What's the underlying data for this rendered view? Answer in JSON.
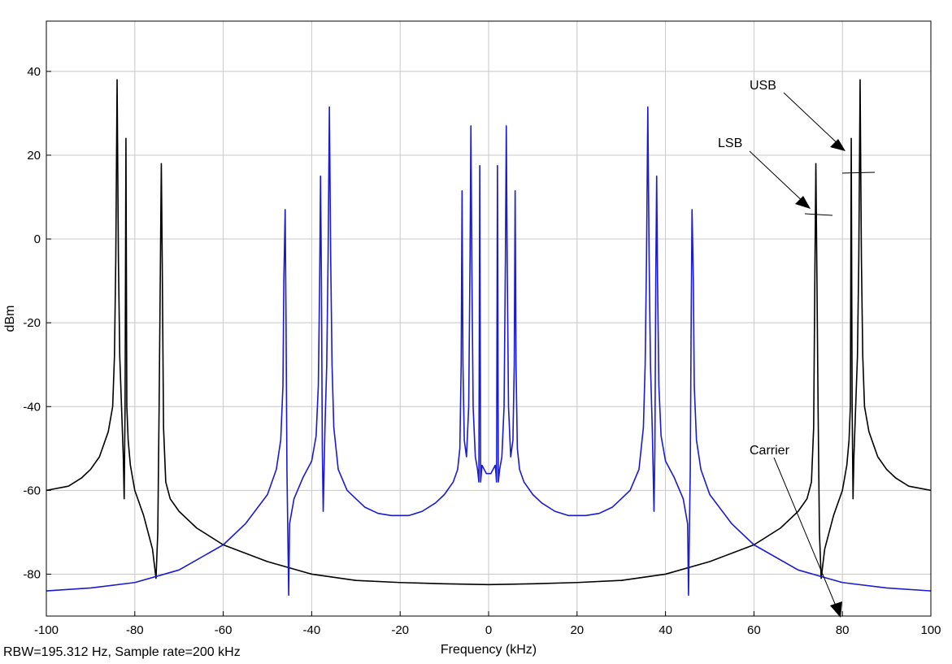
{
  "chart_data": {
    "type": "line",
    "title": "",
    "xlabel": "Frequency (kHz)",
    "ylabel": "dBm",
    "xlim": [
      -100,
      100
    ],
    "ylim": [
      -90,
      52
    ],
    "xticks": [
      -100,
      -80,
      -60,
      -40,
      -20,
      0,
      20,
      40,
      60,
      80,
      100
    ],
    "yticks": [
      -80,
      -60,
      -40,
      -20,
      0,
      20,
      40
    ],
    "grid": true,
    "legend": "none",
    "series": [
      {
        "color": "#000000",
        "x": [
          -100,
          -95,
          -92,
          -90,
          -88,
          -86,
          -85,
          -84.6,
          -84.3,
          -84,
          -83.7,
          -83.4,
          -83,
          -82.6,
          -82.4,
          -82.2,
          -82,
          -81.8,
          -81.5,
          -81,
          -80,
          -78,
          -76,
          -75.2,
          -74.8,
          -74.5,
          -74.2,
          -74,
          -73.8,
          -73.5,
          -73,
          -72,
          -70,
          -66,
          -60,
          -50,
          -40,
          -30,
          -20,
          -10,
          0,
          10,
          20,
          30,
          40,
          50,
          60,
          66,
          70,
          72,
          73,
          73.5,
          73.8,
          74,
          74.2,
          74.5,
          74.8,
          75.2,
          76,
          78,
          80,
          81,
          81.5,
          81.8,
          82,
          82.2,
          82.4,
          82.6,
          83,
          83.4,
          83.7,
          84,
          84.3,
          84.6,
          85,
          86,
          88,
          90,
          92,
          95,
          100
        ],
        "y": [
          -60,
          -59,
          -57,
          -55,
          -52,
          -46,
          -40,
          -28,
          -5,
          38,
          -5,
          -28,
          -40,
          -52,
          -62,
          -40,
          24,
          -40,
          -48,
          -54,
          -60,
          -66,
          -74,
          -81,
          -70,
          -40,
          -5,
          18,
          -5,
          -45,
          -58,
          -62,
          -65,
          -69,
          -73,
          -77,
          -80,
          -81.5,
          -82,
          -82.3,
          -82.5,
          -82.3,
          -82,
          -81.5,
          -80,
          -77,
          -73,
          -69,
          -65,
          -62,
          -58,
          -45,
          -5,
          18,
          -5,
          -40,
          -70,
          -81,
          -74,
          -66,
          -60,
          -54,
          -48,
          -40,
          24,
          -40,
          -62,
          -52,
          -40,
          -28,
          -5,
          38,
          -5,
          -28,
          -40,
          -46,
          -52,
          -55,
          -57,
          -59,
          -60
        ]
      },
      {
        "color": "#1a1ad0",
        "x": [
          -100,
          -90,
          -80,
          -70,
          -60,
          -55,
          -50,
          -48,
          -47,
          -46.5,
          -46.3,
          -46,
          -45.8,
          -45.6,
          -45.4,
          -45.2,
          -45,
          -44,
          -42,
          -40,
          -39,
          -38.5,
          -38.2,
          -38,
          -37.8,
          -37.6,
          -37.4,
          -37.2,
          -37,
          -36.6,
          -36.3,
          -36,
          -35.7,
          -35.4,
          -35,
          -34,
          -32,
          -30,
          -28,
          -25,
          -22,
          -20,
          -18,
          -15,
          -12,
          -10,
          -8,
          -7,
          -6.5,
          -6.2,
          -6,
          -5.8,
          -5.5,
          -5,
          -4.5,
          -4.2,
          -4,
          -3.8,
          -3.5,
          -3,
          -2.5,
          -2.2,
          -2,
          -1.8,
          -1.5,
          -1,
          -0.5,
          0,
          0.5,
          1,
          1.5,
          1.8,
          2,
          2.2,
          2.5,
          3,
          3.5,
          3.8,
          4,
          4.2,
          4.5,
          5,
          5.5,
          5.8,
          6,
          6.2,
          6.5,
          7,
          8,
          10,
          12,
          15,
          18,
          20,
          22,
          25,
          28,
          30,
          32,
          34,
          35,
          35.4,
          35.7,
          36,
          36.3,
          36.6,
          37,
          37.2,
          37.4,
          37.6,
          37.8,
          38,
          38.2,
          38.5,
          39,
          40,
          42,
          44,
          45,
          45.2,
          45.4,
          45.6,
          45.8,
          46,
          46.3,
          46.5,
          47,
          48,
          50,
          55,
          60,
          70,
          80,
          90,
          100
        ],
        "y": [
          -84,
          -83.3,
          -82,
          -79,
          -73,
          -68,
          -61,
          -55,
          -48,
          -35,
          -10,
          7,
          -20,
          -55,
          -70,
          -85,
          -68,
          -62,
          -57,
          -53,
          -47,
          -35,
          -10,
          15,
          -10,
          -50,
          -65,
          -55,
          -45,
          -30,
          -5,
          31.5,
          -5,
          -30,
          -45,
          -55,
          -60,
          -62,
          -64,
          -65.5,
          -66,
          -66,
          -66,
          -65,
          -63,
          -61,
          -58,
          -55,
          -50,
          -30,
          11.5,
          -30,
          -48,
          -52,
          -40,
          -5,
          27,
          -5,
          -40,
          -52,
          -55,
          -58,
          17.5,
          -58,
          -54,
          -55,
          -56,
          -56,
          -56,
          -55,
          -54,
          -58,
          17.5,
          -58,
          -55,
          -52,
          -40,
          -5,
          27,
          -5,
          -40,
          -52,
          -48,
          -30,
          11.5,
          -30,
          -50,
          -55,
          -58,
          -61,
          -63,
          -65,
          -66,
          -66,
          -66,
          -65.5,
          -64,
          -62,
          -60,
          -55,
          -45,
          -30,
          -5,
          31.5,
          -5,
          -30,
          -45,
          -55,
          -65,
          -50,
          -10,
          15,
          -10,
          -35,
          -47,
          -53,
          -57,
          -62,
          -68,
          -85,
          -70,
          -55,
          -20,
          7,
          -10,
          -35,
          -48,
          -55,
          -61,
          -68,
          -73,
          -79,
          -82,
          -83.3,
          -84
        ]
      }
    ],
    "annotations": [
      {
        "text": "USB"
      },
      {
        "text": "LSB"
      },
      {
        "text": "Carrier"
      }
    ]
  },
  "footnote": "RBW=195.312 Hz, Sample rate=200 kHz"
}
